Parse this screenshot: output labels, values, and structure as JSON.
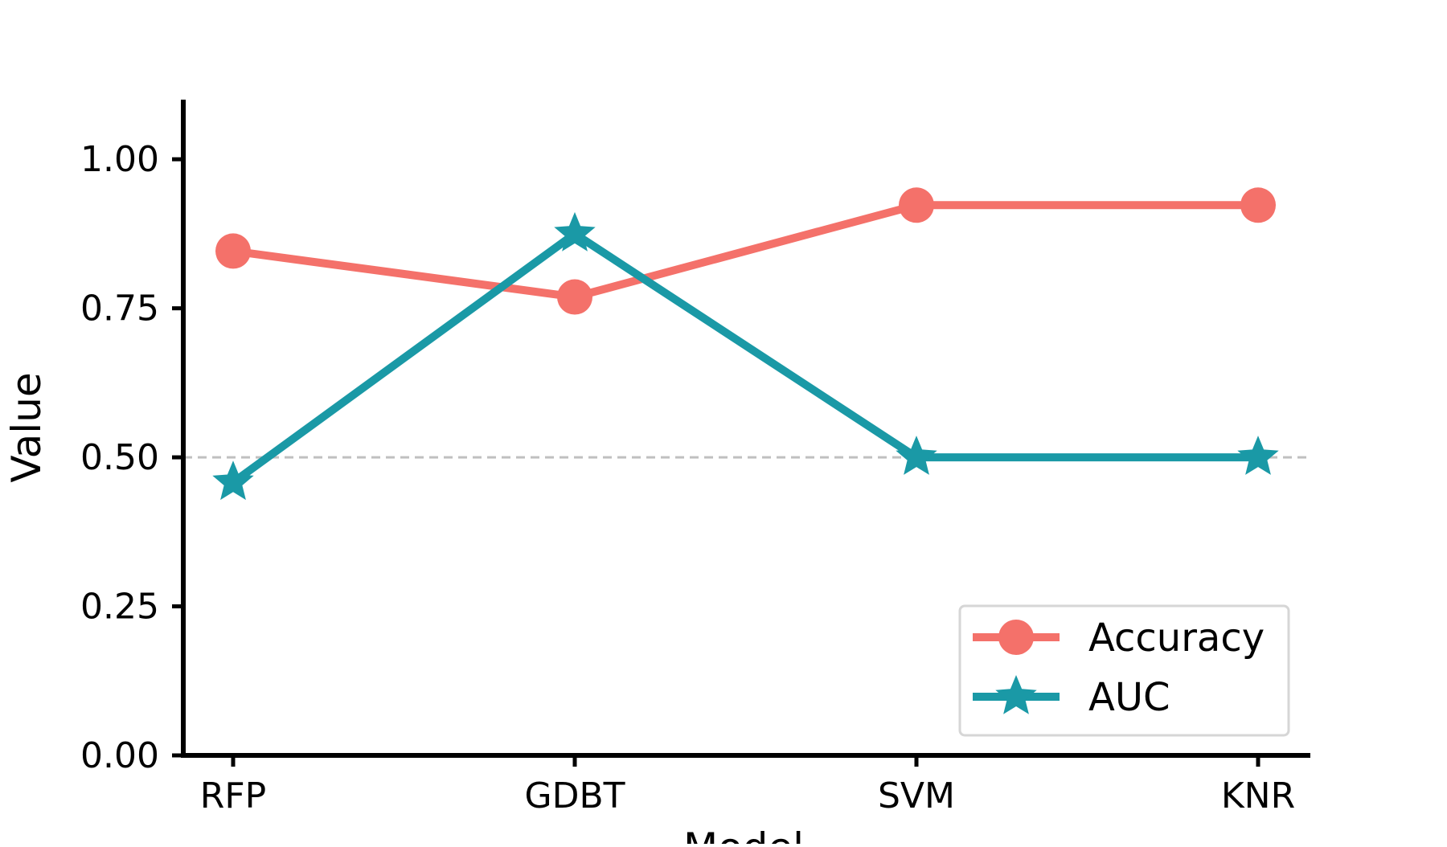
{
  "chart_data": {
    "type": "line",
    "categories": [
      "RFP",
      "GDBT",
      "SVM",
      "KNR"
    ],
    "series": [
      {
        "name": "Accuracy",
        "values": [
          0.846,
          0.769,
          0.923,
          0.923
        ],
        "color": "#f4716a",
        "marker": "circle"
      },
      {
        "name": "AUC",
        "values": [
          0.458,
          0.875,
          0.5,
          0.5
        ],
        "color": "#1a99a6",
        "marker": "star"
      }
    ],
    "xlabel": "Model",
    "ylabel": "Value",
    "ylim": [
      0,
      1.1
    ],
    "yticks": [
      0,
      0.25,
      0.5,
      0.75,
      1.0
    ],
    "ytick_labels": [
      "0.00",
      "0.25",
      "0.50",
      "0.75",
      "1.00"
    ],
    "reference_line": {
      "y": 0.5,
      "style": "dashed",
      "color": "#c0c0c0"
    },
    "grid": false,
    "legend_position": "bottom-right"
  }
}
